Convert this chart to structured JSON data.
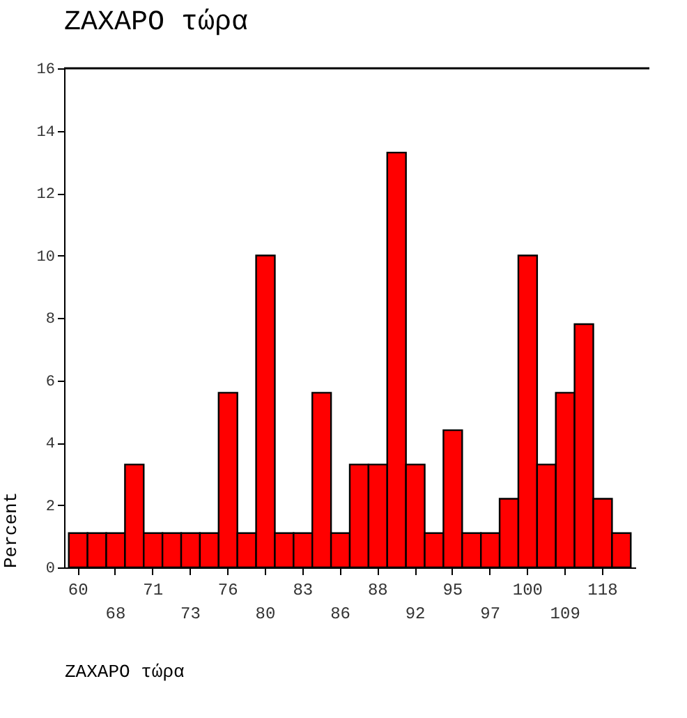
{
  "chart_data": {
    "type": "bar",
    "title": "ZAXAPO τώρα",
    "xlabel": "ZAXAPO τώρα",
    "ylabel": "Percent",
    "categories": [
      "60",
      null,
      "68",
      null,
      "71",
      null,
      "73",
      null,
      "76",
      null,
      "80",
      null,
      "83",
      null,
      "86",
      null,
      "88",
      null,
      "92",
      null,
      "95",
      null,
      "97",
      null,
      "100",
      null,
      "109",
      null,
      "118",
      null
    ],
    "values": [
      1.1,
      1.1,
      1.1,
      3.3,
      1.1,
      1.1,
      1.1,
      1.1,
      5.6,
      1.1,
      10,
      1.1,
      1.1,
      5.6,
      1.1,
      3.3,
      3.3,
      13.3,
      3.3,
      1.1,
      4.4,
      1.1,
      1.1,
      2.2,
      10,
      3.3,
      5.6,
      7.8,
      2.2,
      1.1
    ],
    "color": "#ff0000",
    "ylim": [
      0,
      16
    ],
    "yticks": [
      0,
      2,
      4,
      6,
      8,
      10,
      12,
      14,
      16
    ],
    "grid": false
  }
}
